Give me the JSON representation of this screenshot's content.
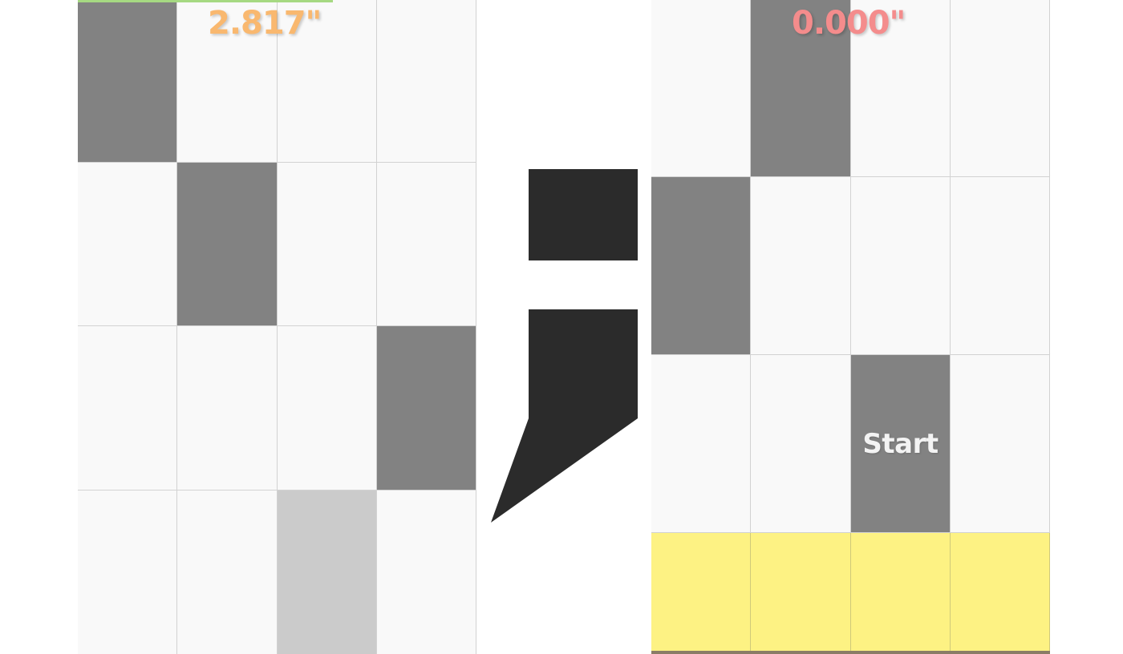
{
  "left_board": {
    "timer": "2.817\"",
    "timer_color": "#f9b86f",
    "progress_fraction": 0.64,
    "progress_color": "#a6d982",
    "columns": 4,
    "rows": [
      [
        "black",
        "white",
        "white",
        "white"
      ],
      [
        "white",
        "black",
        "white",
        "white"
      ],
      [
        "white",
        "white",
        "white",
        "black"
      ],
      [
        "white",
        "white",
        "tapped",
        "white"
      ]
    ]
  },
  "divider": {
    "glyph": ";",
    "color": "#2b2b2b"
  },
  "right_board": {
    "timer": "0.000\"",
    "timer_color": "#f48c8c",
    "start_label": "Start",
    "start_tile": {
      "row": 2,
      "column": 2
    },
    "columns": 4,
    "rows": [
      [
        "white",
        "black",
        "white",
        "white"
      ],
      [
        "black",
        "white",
        "white",
        "white"
      ],
      [
        "white",
        "white",
        "black",
        "white"
      ],
      [
        "yellow",
        "yellow",
        "yellow",
        "yellow"
      ]
    ],
    "yellow_color": "#fdf283"
  },
  "colors": {
    "white_tile": "#f9f9f9",
    "black_tile": "#828282",
    "tapped_tile": "#cbcbcb"
  }
}
